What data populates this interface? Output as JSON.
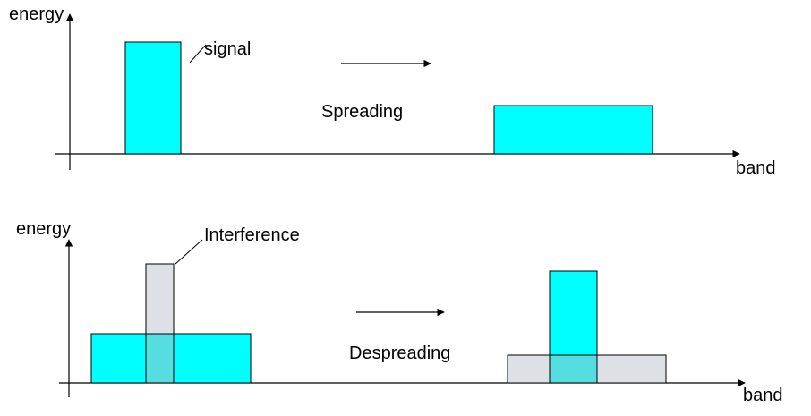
{
  "diagram": {
    "top_panel": {
      "y_axis_label": "energy",
      "x_axis_label": "band",
      "signal_callout": "signal",
      "process_label": "Spreading"
    },
    "bottom_panel": {
      "y_axis_label": "energy",
      "x_axis_label": "band",
      "interference_callout": "Interference",
      "process_label": "Despreading"
    }
  },
  "colors": {
    "signal_fill": "#00FFFF",
    "interference_fill": "#DDE1E6",
    "overlap_fill": "#55DDE0",
    "axis": "#000000",
    "background": "#FFFFFF"
  }
}
